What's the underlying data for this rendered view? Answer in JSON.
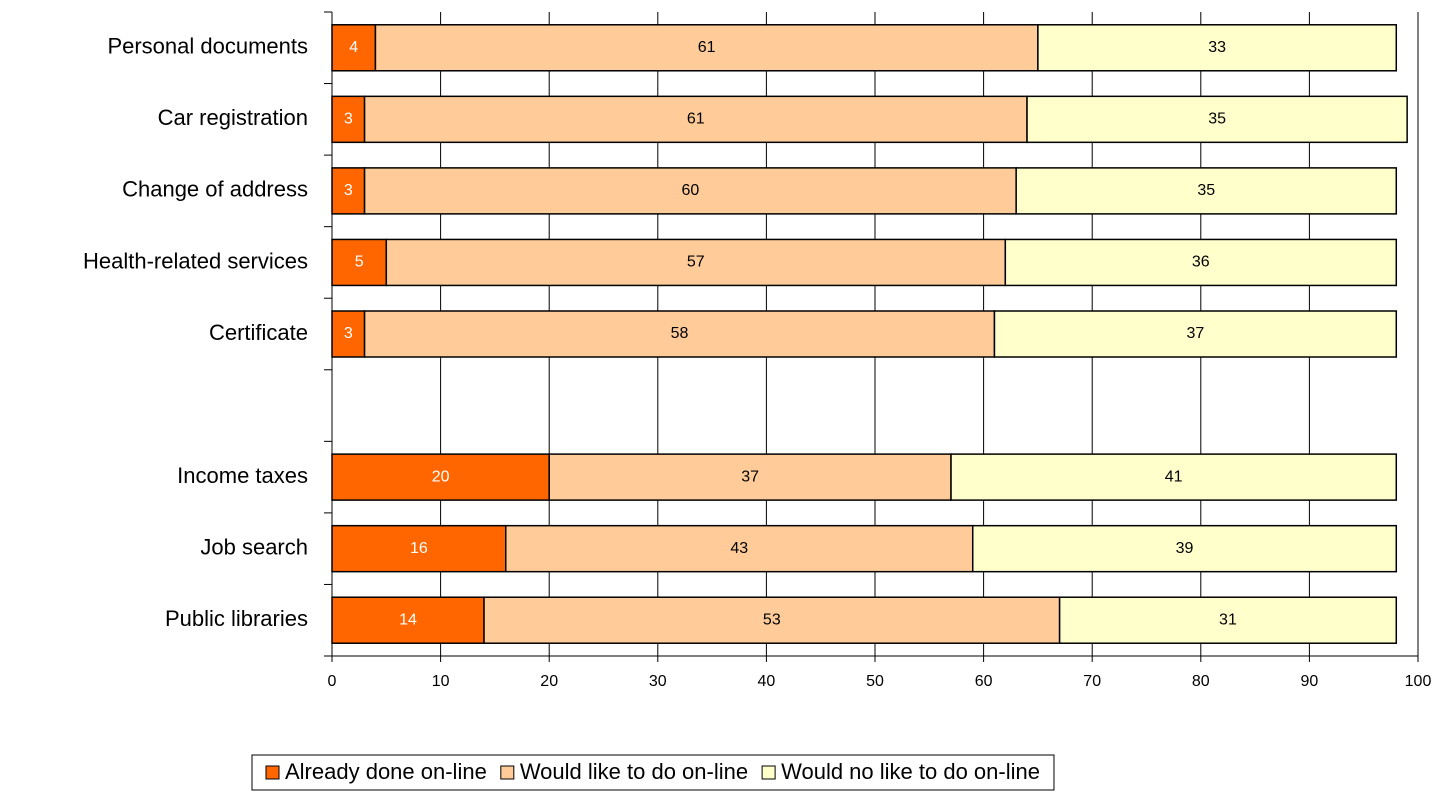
{
  "chart_data": {
    "type": "stacked_barh",
    "categories": [
      "Personal documents",
      "Car registration",
      "Change of address",
      "Health-related services",
      "Certificate",
      null,
      "Income taxes",
      "Job search",
      "Public libraries"
    ],
    "series": [
      {
        "name": "Already done on-line",
        "color": "#ff6600",
        "values": [
          4,
          3,
          3,
          5,
          3,
          null,
          20,
          16,
          14
        ]
      },
      {
        "name": "Would like to do on-line",
        "color": "#ffcc99",
        "values": [
          61,
          61,
          60,
          57,
          58,
          null,
          37,
          43,
          53
        ]
      },
      {
        "name": "Would no like to do on-line",
        "color": "#ffffcc",
        "values": [
          33,
          35,
          35,
          36,
          37,
          null,
          41,
          39,
          31
        ]
      }
    ],
    "xlim": [
      0,
      100
    ],
    "xticks": [
      0,
      10,
      20,
      30,
      40,
      50,
      60,
      70,
      80,
      90,
      100
    ],
    "grid": true,
    "legend": "bottom"
  }
}
